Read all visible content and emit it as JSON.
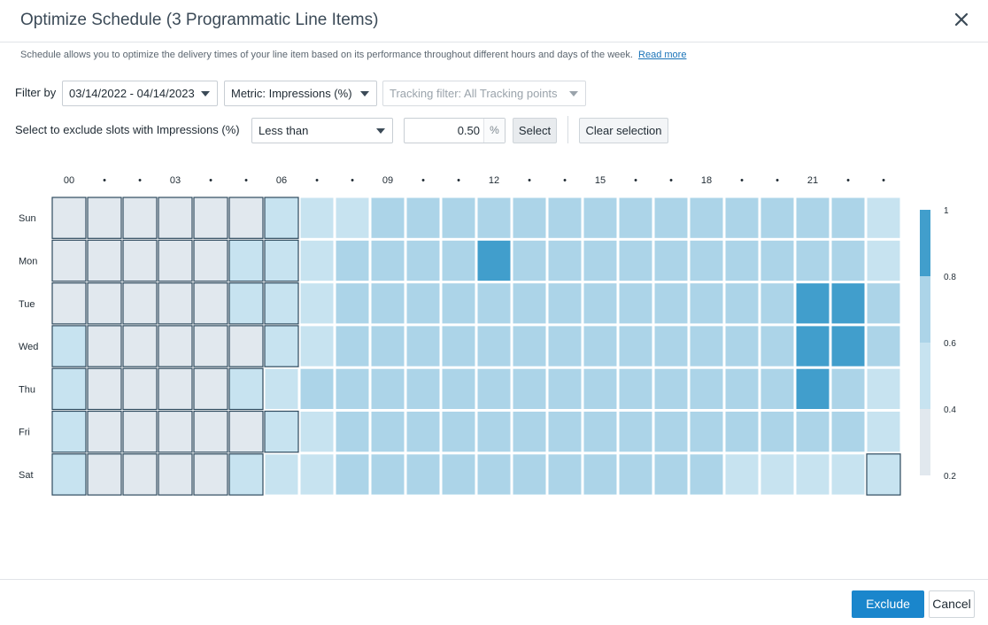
{
  "dialog": {
    "title": "Optimize Schedule (3 Programmatic Line Items)",
    "close_icon": "close-icon",
    "description": "Schedule allows you to optimize the delivery times of your line item based on its performance throughout different hours and days of the week.",
    "read_more": "Read more"
  },
  "filters": {
    "label": "Filter by",
    "date_range": "03/14/2022 - 04/14/2023",
    "metric": "Metric: Impressions (%)",
    "tracking": "Tracking filter: All Tracking points"
  },
  "exclude": {
    "label": "Select to exclude slots with Impressions (%)",
    "operator": "Less than",
    "value": "0.50",
    "unit": "%",
    "select_label": "Select",
    "clear_label": "Clear selection"
  },
  "footer": {
    "exclude_label": "Exclude",
    "cancel_label": "Cancel",
    "primary_color": "#1a86cc"
  },
  "chart_data": {
    "type": "heatmap",
    "title": "",
    "x_tick_labels": [
      "00",
      "•",
      "•",
      "03",
      "•",
      "•",
      "06",
      "•",
      "•",
      "09",
      "•",
      "•",
      "12",
      "•",
      "•",
      "15",
      "•",
      "•",
      "18",
      "•",
      "•",
      "21",
      "•",
      "•"
    ],
    "y_categories": [
      "Sun",
      "Mon",
      "Tue",
      "Wed",
      "Thu",
      "Fri",
      "Sat"
    ],
    "colorbar": {
      "range": [
        0.2,
        1
      ],
      "ticks": [
        "1",
        "0.8",
        "0.6",
        "0.4",
        "0.2"
      ]
    },
    "colors": {
      "level_1": "#e1e8ee",
      "level_2": "#c7e3f0",
      "level_3": "#acd4e8",
      "level_4": "#419ecc",
      "selected_border": "#2e4a5e"
    },
    "levels": [
      [
        1,
        1,
        1,
        1,
        1,
        1,
        2,
        2,
        2,
        3,
        3,
        3,
        3,
        3,
        3,
        3,
        3,
        3,
        3,
        3,
        3,
        3,
        3,
        2
      ],
      [
        1,
        1,
        1,
        1,
        1,
        2,
        2,
        2,
        3,
        3,
        3,
        3,
        4,
        3,
        3,
        3,
        3,
        3,
        3,
        3,
        3,
        3,
        3,
        2
      ],
      [
        1,
        1,
        1,
        1,
        1,
        2,
        2,
        2,
        3,
        3,
        3,
        3,
        3,
        3,
        3,
        3,
        3,
        3,
        3,
        3,
        3,
        4,
        4,
        3
      ],
      [
        2,
        1,
        1,
        1,
        1,
        1,
        2,
        2,
        3,
        3,
        3,
        3,
        3,
        3,
        3,
        3,
        3,
        3,
        3,
        3,
        3,
        4,
        4,
        3
      ],
      [
        2,
        1,
        1,
        1,
        1,
        2,
        2,
        3,
        3,
        3,
        3,
        3,
        3,
        3,
        3,
        3,
        3,
        3,
        3,
        3,
        3,
        4,
        3,
        2
      ],
      [
        2,
        1,
        1,
        1,
        1,
        1,
        2,
        2,
        3,
        3,
        3,
        3,
        3,
        3,
        3,
        3,
        3,
        3,
        3,
        3,
        3,
        3,
        3,
        2
      ],
      [
        2,
        1,
        1,
        1,
        1,
        2,
        2,
        2,
        3,
        3,
        3,
        3,
        3,
        3,
        3,
        3,
        3,
        3,
        3,
        2,
        2,
        2,
        2,
        2
      ]
    ],
    "selected": [
      [
        1,
        1,
        1,
        1,
        1,
        1,
        1,
        0,
        0,
        0,
        0,
        0,
        0,
        0,
        0,
        0,
        0,
        0,
        0,
        0,
        0,
        0,
        0,
        0
      ],
      [
        1,
        1,
        1,
        1,
        1,
        1,
        1,
        0,
        0,
        0,
        0,
        0,
        0,
        0,
        0,
        0,
        0,
        0,
        0,
        0,
        0,
        0,
        0,
        0
      ],
      [
        1,
        1,
        1,
        1,
        1,
        1,
        1,
        0,
        0,
        0,
        0,
        0,
        0,
        0,
        0,
        0,
        0,
        0,
        0,
        0,
        0,
        0,
        0,
        0
      ],
      [
        1,
        1,
        1,
        1,
        1,
        1,
        1,
        0,
        0,
        0,
        0,
        0,
        0,
        0,
        0,
        0,
        0,
        0,
        0,
        0,
        0,
        0,
        0,
        0
      ],
      [
        1,
        1,
        1,
        1,
        1,
        1,
        0,
        0,
        0,
        0,
        0,
        0,
        0,
        0,
        0,
        0,
        0,
        0,
        0,
        0,
        0,
        0,
        0,
        0
      ],
      [
        1,
        1,
        1,
        1,
        1,
        1,
        1,
        0,
        0,
        0,
        0,
        0,
        0,
        0,
        0,
        0,
        0,
        0,
        0,
        0,
        0,
        0,
        0,
        0
      ],
      [
        1,
        1,
        1,
        1,
        1,
        1,
        0,
        0,
        0,
        0,
        0,
        0,
        0,
        0,
        0,
        0,
        0,
        0,
        0,
        0,
        0,
        0,
        0,
        1
      ]
    ]
  }
}
